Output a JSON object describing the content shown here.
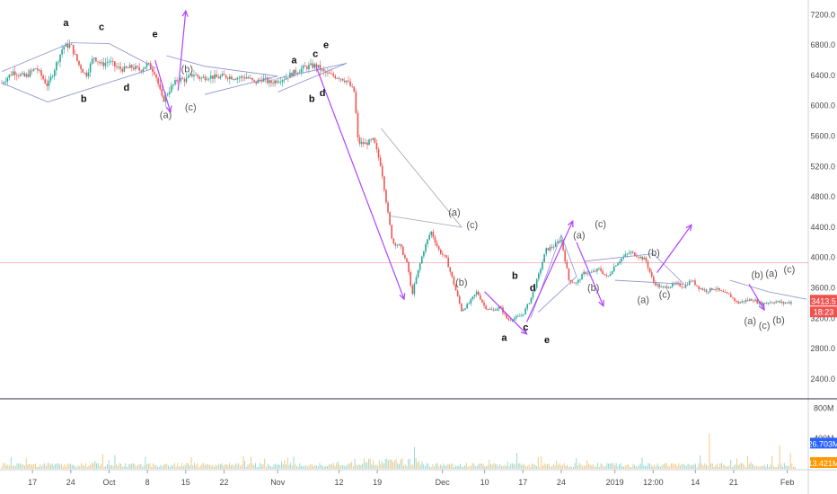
{
  "chart_data": {
    "type": "candlestick",
    "price_axis": {
      "ticks": [
        "7200.0",
        "6800.0",
        "6400.0",
        "6000.0",
        "5600.0",
        "5200.0",
        "4800.0",
        "4400.0",
        "4000.0",
        "3600.0",
        "3200.0",
        "2800.0",
        "2400.0"
      ],
      "tick_values": [
        7200,
        6800,
        6400,
        6000,
        5600,
        5200,
        4800,
        4400,
        4000,
        3600,
        3200,
        2800,
        2400
      ],
      "range": [
        2150,
        7370
      ]
    },
    "volume_axis": {
      "ticks": [
        "800M",
        "400M"
      ],
      "tick_values": [
        800,
        400
      ],
      "range": [
        0,
        900
      ]
    },
    "time_axis": {
      "labels": [
        "17",
        "24",
        "Oct",
        "8",
        "15",
        "22",
        "Nov",
        "12",
        "19",
        "Dec",
        "10",
        "17",
        "24",
        "2019",
        "12:00",
        "14",
        "21",
        "Feb"
      ],
      "index_positions": [
        8,
        18,
        28,
        38,
        48,
        58,
        72,
        88,
        98,
        115,
        126,
        136,
        146,
        160,
        170,
        181,
        191,
        205
      ]
    },
    "current_price": {
      "value": 3413.5,
      "label": "3413.5",
      "countdown": "18:23",
      "color": "#ef5350"
    },
    "reference_price": 3930,
    "volume_badges": [
      {
        "label": "26.703M",
        "color": "#2962ff",
        "value": 268
      },
      {
        "label": "13.421M",
        "color": "#ff9800",
        "value": 130
      }
    ],
    "price_path": [
      [
        0,
        6300
      ],
      [
        3,
        6450
      ],
      [
        6,
        6380
      ],
      [
        9,
        6500
      ],
      [
        12,
        6260
      ],
      [
        14,
        6520
      ],
      [
        16,
        6780
      ],
      [
        18,
        6800
      ],
      [
        20,
        6550
      ],
      [
        22,
        6400
      ],
      [
        24,
        6650
      ],
      [
        26,
        6540
      ],
      [
        28,
        6590
      ],
      [
        30,
        6500
      ],
      [
        32,
        6480
      ],
      [
        34,
        6510
      ],
      [
        36,
        6470
      ],
      [
        38,
        6550
      ],
      [
        40,
        6440
      ],
      [
        42,
        6060
      ],
      [
        44,
        6230
      ],
      [
        46,
        6350
      ],
      [
        48,
        6340
      ],
      [
        50,
        6420
      ],
      [
        52,
        6360
      ],
      [
        54,
        6390
      ],
      [
        56,
        6370
      ],
      [
        58,
        6390
      ],
      [
        60,
        6380
      ],
      [
        62,
        6370
      ],
      [
        64,
        6380
      ],
      [
        66,
        6300
      ],
      [
        68,
        6360
      ],
      [
        70,
        6300
      ],
      [
        72,
        6340
      ],
      [
        74,
        6370
      ],
      [
        76,
        6430
      ],
      [
        78,
        6480
      ],
      [
        80,
        6520
      ],
      [
        82,
        6530
      ],
      [
        84,
        6440
      ],
      [
        86,
        6400
      ],
      [
        88,
        6380
      ],
      [
        90,
        6330
      ],
      [
        92,
        6180
      ],
      [
        93,
        5510
      ],
      [
        95,
        5500
      ],
      [
        97,
        5550
      ],
      [
        99,
        5200
      ],
      [
        101,
        4500
      ],
      [
        102,
        4200
      ],
      [
        104,
        4150
      ],
      [
        106,
        3880
      ],
      [
        107,
        3500
      ],
      [
        108,
        3700
      ],
      [
        110,
        4080
      ],
      [
        112,
        4350
      ],
      [
        114,
        4100
      ],
      [
        116,
        3980
      ],
      [
        118,
        3650
      ],
      [
        120,
        3300
      ],
      [
        122,
        3400
      ],
      [
        124,
        3550
      ],
      [
        126,
        3350
      ],
      [
        128,
        3300
      ],
      [
        130,
        3350
      ],
      [
        132,
        3180
      ],
      [
        134,
        3200
      ],
      [
        136,
        3250
      ],
      [
        138,
        3450
      ],
      [
        140,
        3750
      ],
      [
        142,
        4100
      ],
      [
        144,
        4150
      ],
      [
        146,
        4240
      ],
      [
        148,
        3700
      ],
      [
        150,
        3660
      ],
      [
        152,
        3800
      ],
      [
        154,
        3800
      ],
      [
        156,
        3850
      ],
      [
        158,
        3730
      ],
      [
        160,
        3900
      ],
      [
        162,
        4000
      ],
      [
        164,
        4070
      ],
      [
        166,
        4020
      ],
      [
        168,
        3970
      ],
      [
        170,
        3680
      ],
      [
        172,
        3600
      ],
      [
        174,
        3620
      ],
      [
        176,
        3650
      ],
      [
        178,
        3620
      ],
      [
        180,
        3700
      ],
      [
        182,
        3600
      ],
      [
        184,
        3560
      ],
      [
        186,
        3600
      ],
      [
        188,
        3540
      ],
      [
        190,
        3500
      ],
      [
        192,
        3400
      ],
      [
        194,
        3430
      ],
      [
        196,
        3450
      ],
      [
        198,
        3390
      ],
      [
        200,
        3410
      ],
      [
        202,
        3420
      ],
      [
        204,
        3400
      ],
      [
        206,
        3413.5
      ]
    ],
    "wave_labels": [
      {
        "text": "a",
        "x": 18,
        "y": 7050,
        "style": "bold"
      },
      {
        "text": "b",
        "x": 23,
        "y": 6050,
        "style": "bold"
      },
      {
        "text": "c",
        "x": 28,
        "y": 7000,
        "style": "bold"
      },
      {
        "text": "d",
        "x": 35,
        "y": 6200,
        "style": "bold"
      },
      {
        "text": "e",
        "x": 43,
        "y": 6900,
        "style": "bold"
      },
      {
        "text": "(b)",
        "x": 52,
        "y": 6440,
        "style": "sub"
      },
      {
        "text": "(a)",
        "x": 46,
        "y": 5840,
        "style": "sub"
      },
      {
        "text": "(c)",
        "x": 53,
        "y": 5940,
        "style": "sub"
      },
      {
        "text": "a",
        "x": 82,
        "y": 6560,
        "style": "bold"
      },
      {
        "text": "c",
        "x": 88,
        "y": 6640,
        "style": "bold"
      },
      {
        "text": "e",
        "x": 91,
        "y": 6760,
        "style": "bold"
      },
      {
        "text": "b",
        "x": 87,
        "y": 6050,
        "style": "bold"
      },
      {
        "text": "d",
        "x": 90,
        "y": 6130,
        "style": "bold"
      },
      {
        "text": "(a)",
        "x": 127,
        "y": 4550,
        "style": "sub"
      },
      {
        "text": "(c)",
        "x": 132,
        "y": 4390,
        "style": "sub"
      },
      {
        "text": "(b)",
        "x": 129,
        "y": 3630,
        "style": "sub"
      },
      {
        "text": "b",
        "x": 144,
        "y": 3720,
        "style": "bold"
      },
      {
        "text": "d",
        "x": 149,
        "y": 3560,
        "style": "bold"
      },
      {
        "text": "c",
        "x": 147,
        "y": 3040,
        "style": "bold"
      },
      {
        "text": "a",
        "x": 141,
        "y": 2900,
        "style": "bold"
      },
      {
        "text": "e",
        "x": 153,
        "y": 2870,
        "style": "bold"
      },
      {
        "text": "(a)",
        "x": 162,
        "y": 4250,
        "style": "sub"
      },
      {
        "text": "(c)",
        "x": 168,
        "y": 4400,
        "style": "sub"
      },
      {
        "text": "(b)",
        "x": 166,
        "y": 3560,
        "style": "sub"
      },
      {
        "text": "(b)",
        "x": 183,
        "y": 4020,
        "style": "sub"
      },
      {
        "text": "(a)",
        "x": 180,
        "y": 3400,
        "style": "sub"
      },
      {
        "text": "(c)",
        "x": 186,
        "y": 3470,
        "style": "sub"
      },
      {
        "text": "(b)",
        "x": 212,
        "y": 3730,
        "style": "sub"
      },
      {
        "text": "(a)",
        "x": 216,
        "y": 3750,
        "style": "sub"
      },
      {
        "text": "(c)",
        "x": 221,
        "y": 3800,
        "style": "sub"
      },
      {
        "text": "(a)",
        "x": 210,
        "y": 3120,
        "style": "sub"
      },
      {
        "text": "(c)",
        "x": 214,
        "y": 3060,
        "style": "sub"
      },
      {
        "text": "(b)",
        "x": 218,
        "y": 3130,
        "style": "sub"
      }
    ]
  }
}
